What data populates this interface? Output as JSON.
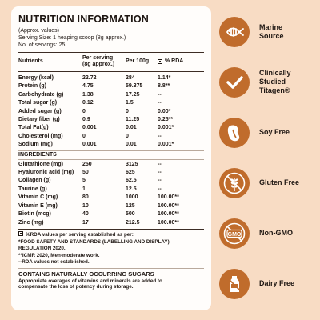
{
  "panel": {
    "title": "NUTRITION INFORMATION",
    "meta": [
      "(Approx. values)",
      "Serving Size: 1 heaping scoop (8g approx.)",
      "No. of servings: 25"
    ],
    "headers": {
      "nutrients": "Nutrients",
      "per_serving_1": "Per serving",
      "per_serving_2": "(8g approx.)",
      "per100": "Per 100g",
      "rda": "% RDA"
    },
    "rows": [
      {
        "name": "Energy (kcal)",
        "serving": "22.72",
        "per100": "284",
        "rda": "1.14*"
      },
      {
        "name": "Protein (g)",
        "serving": "4.75",
        "per100": "59.375",
        "rda": "8.8**"
      },
      {
        "name": "Carbohydrate (g)",
        "serving": "1.38",
        "per100": "17.25",
        "rda": "--"
      },
      {
        "name": "Total sugar (g)",
        "serving": "0.12",
        "per100": "1.5",
        "rda": "--"
      },
      {
        "name": "Added sugar (g)",
        "serving": "0",
        "per100": "0",
        "rda": "0.00*"
      },
      {
        "name": "Dietary fiber (g)",
        "serving": "0.9",
        "per100": "11.25",
        "rda": "0.25**"
      },
      {
        "name": "Total Fat(g)",
        "serving": "0.001",
        "per100": "0.01",
        "rda": "0.001*"
      },
      {
        "name": "Cholesterol (mg)",
        "serving": "0",
        "per100": "0",
        "rda": "--"
      },
      {
        "name": "Sodium (mg)",
        "serving": "0.001",
        "per100": "0.01",
        "rda": "0.001*"
      }
    ],
    "ingredients_title": "INGREDIENTS",
    "ingredients": [
      {
        "name": "Glutathione (mg)",
        "serving": "250",
        "per100": "3125",
        "rda": "--"
      },
      {
        "name": "Hyaluronic acid (mg)",
        "serving": "50",
        "per100": "625",
        "rda": "--"
      },
      {
        "name": "Collagen (g)",
        "serving": "5",
        "per100": "62.5",
        "rda": "--"
      },
      {
        "name": "Taurine (g)",
        "serving": "1",
        "per100": "12.5",
        "rda": "--"
      },
      {
        "name": "Vitamin C (mg)",
        "serving": "80",
        "per100": "1000",
        "rda": "100.00**"
      },
      {
        "name": "Vitamin E (mg)",
        "serving": "10",
        "per100": "125",
        "rda": "100.00**"
      },
      {
        "name": "Biotin (mcg)",
        "serving": "40",
        "per100": "500",
        "rda": "100.00**"
      },
      {
        "name": "Zinc (mg)",
        "serving": "17",
        "per100": "212.5",
        "rda": "100.00**"
      }
    ],
    "footnotes": [
      "%RDA values per serving established as per:",
      "*FOOD SAFETY AND STANDARDS (LABELLING AND DISPLAY)",
      "REGULATION 2020.",
      "**ICMR 2020, Men-moderate work.",
      "--RDA values not established."
    ],
    "contains": "CONTAINS NATURALLY OCCURRING SUGARS",
    "note": [
      "Appropriate overages of vitamins and minerals are added to",
      "compensate the loss of potency during storage."
    ]
  },
  "badges": [
    {
      "icon": "fish-icon",
      "label1": "Marine",
      "label2": "Source"
    },
    {
      "icon": "checkmark-icon",
      "label1": "Clinically",
      "label2": "Studied",
      "label3": "Titagen®"
    },
    {
      "icon": "soybean-crossed-icon",
      "label1": "Soy Free"
    },
    {
      "icon": "wheat-crossed-icon",
      "label1": "Gluten Free"
    },
    {
      "icon": "gmo-crossed-icon",
      "label1": "Non-GMO",
      "gmo_text": "GMO"
    },
    {
      "icon": "milk-bottle-crossed-icon",
      "label1": "Dairy Free"
    }
  ],
  "colors": {
    "background": "#f8dcc4",
    "accent": "#c06c2c",
    "panel": "#fffdfb"
  }
}
